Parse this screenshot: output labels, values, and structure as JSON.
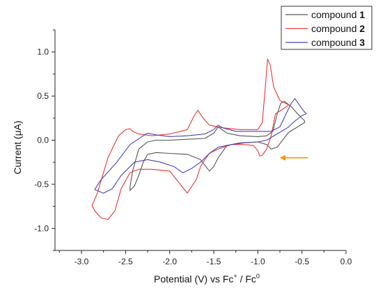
{
  "chart_data": {
    "type": "line",
    "xlabel": "Potential (V) vs Fc",
    "xlabel_parts": {
      "sup1": "+",
      "mid": " / Fc",
      "sup2": "0"
    },
    "ylabel": "Current (μA)",
    "xlim": [
      -3.3,
      0.0
    ],
    "ylim": [
      -1.25,
      1.25
    ],
    "x_ticks": [
      -3.0,
      -2.5,
      -2.0,
      -1.5,
      -1.0,
      -0.5,
      0.0
    ],
    "x_tick_labels": [
      "-3.0",
      "-2.5",
      "-2.0",
      "-1.5",
      "-1.0",
      "-0.5",
      "0.0"
    ],
    "y_ticks": [
      -1.0,
      -0.5,
      0.0,
      0.5,
      1.0
    ],
    "y_tick_labels": [
      "-1.0",
      "-0.5",
      "0.0",
      "0.5",
      "1.0"
    ],
    "grid": false,
    "legend_position": "top-right",
    "legend": [
      {
        "prefix": "compound ",
        "num": "1"
      },
      {
        "prefix": "compound ",
        "num": "2"
      },
      {
        "prefix": "compound ",
        "num": "3"
      }
    ],
    "arrow": {
      "from": [
        -0.43,
        -0.2
      ],
      "to": [
        -0.75,
        -0.2
      ],
      "color": "#ff8c00"
    },
    "series": [
      {
        "name": "compound 1",
        "color": "#555555",
        "x": [
          -0.47,
          -0.55,
          -0.65,
          -0.72,
          -0.78,
          -0.85,
          -0.9,
          -1.0,
          -1.2,
          -1.35,
          -1.45,
          -1.5,
          -1.55,
          -1.65,
          -1.8,
          -2.0,
          -2.15,
          -2.25,
          -2.3,
          -2.35,
          -2.4,
          -2.45,
          -2.45,
          -2.42,
          -2.35,
          -2.25,
          -2.15,
          -2.0,
          -1.8,
          -1.6,
          -1.5,
          -1.45,
          -1.35,
          -1.2,
          -1.0,
          -0.9,
          -0.83,
          -0.78,
          -0.74,
          -0.7,
          -0.62,
          -0.55,
          -0.47
        ],
        "y": [
          0.2,
          0.15,
          0.09,
          0.0,
          -0.08,
          -0.1,
          -0.05,
          -0.02,
          -0.03,
          -0.06,
          -0.2,
          -0.3,
          -0.35,
          -0.22,
          -0.16,
          -0.15,
          -0.14,
          -0.16,
          -0.25,
          -0.4,
          -0.52,
          -0.57,
          -0.53,
          -0.35,
          -0.1,
          -0.02,
          0.0,
          0.0,
          0.01,
          0.02,
          0.08,
          0.15,
          0.08,
          0.05,
          0.04,
          0.05,
          0.1,
          0.3,
          0.42,
          0.44,
          0.38,
          0.3,
          0.22
        ]
      },
      {
        "name": "compound 2",
        "color": "#ee3333",
        "x": [
          -0.65,
          -0.72,
          -0.8,
          -0.85,
          -0.9,
          -0.95,
          -0.98,
          -1.0,
          -1.05,
          -1.15,
          -1.3,
          -1.45,
          -1.55,
          -1.6,
          -1.65,
          -1.7,
          -1.8,
          -2.0,
          -2.2,
          -2.35,
          -2.45,
          -2.55,
          -2.62,
          -2.7,
          -2.78,
          -2.85,
          -2.88,
          -2.82,
          -2.7,
          -2.58,
          -2.5,
          -2.45,
          -2.42,
          -2.35,
          -2.2,
          -2.0,
          -1.8,
          -1.72,
          -1.68,
          -1.62,
          -1.55,
          -1.4,
          -1.2,
          -1.0,
          -0.95,
          -0.92,
          -0.89,
          -0.86,
          -0.82,
          -0.75,
          -0.65
        ],
        "y": [
          0.4,
          0.35,
          0.3,
          0.05,
          -0.1,
          -0.17,
          -0.18,
          -0.12,
          -0.06,
          -0.05,
          -0.05,
          -0.1,
          -0.15,
          -0.22,
          -0.3,
          -0.45,
          -0.6,
          -0.35,
          -0.33,
          -0.33,
          -0.37,
          -0.55,
          -0.8,
          -0.9,
          -0.88,
          -0.8,
          -0.74,
          -0.6,
          -0.2,
          0.05,
          0.12,
          0.13,
          0.1,
          0.07,
          0.05,
          0.07,
          0.12,
          0.28,
          0.34,
          0.25,
          0.17,
          0.14,
          0.12,
          0.12,
          0.2,
          0.55,
          0.92,
          0.85,
          0.6,
          0.45,
          0.4
        ]
      },
      {
        "name": "compound 3",
        "color": "#4444bb",
        "x": [
          -0.45,
          -0.5,
          -0.6,
          -0.65,
          -0.7,
          -0.8,
          -0.9,
          -1.0,
          -1.15,
          -1.3,
          -1.45,
          -1.55,
          -1.65,
          -1.75,
          -1.85,
          -1.95,
          -2.1,
          -2.25,
          -2.4,
          -2.55,
          -2.65,
          -2.75,
          -2.85,
          -2.78,
          -2.6,
          -2.45,
          -2.3,
          -2.25,
          -2.15,
          -2.0,
          -1.8,
          -1.6,
          -1.5,
          -1.45,
          -1.4,
          -1.25,
          -1.0,
          -0.85,
          -0.75,
          -0.68,
          -0.62,
          -0.58,
          -0.53,
          -0.48,
          -0.45
        ],
        "y": [
          0.3,
          0.28,
          0.2,
          0.15,
          0.12,
          0.06,
          0.0,
          -0.02,
          -0.03,
          -0.05,
          -0.08,
          -0.15,
          -0.25,
          -0.32,
          -0.37,
          -0.3,
          -0.25,
          -0.22,
          -0.25,
          -0.4,
          -0.55,
          -0.6,
          -0.56,
          -0.45,
          -0.25,
          -0.05,
          0.05,
          0.08,
          0.06,
          0.04,
          0.05,
          0.07,
          0.12,
          0.17,
          0.14,
          0.1,
          0.1,
          0.1,
          0.15,
          0.3,
          0.42,
          0.47,
          0.4,
          0.33,
          0.3
        ]
      }
    ]
  }
}
